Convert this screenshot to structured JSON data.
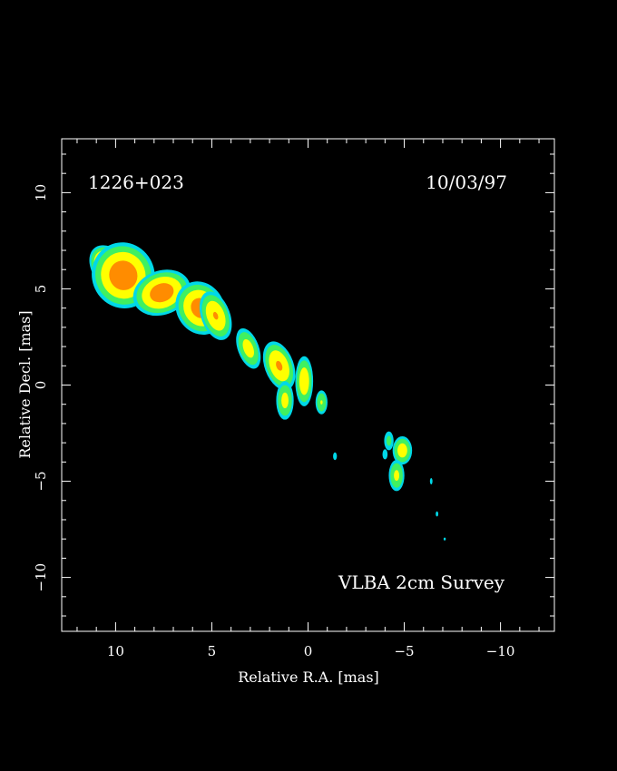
{
  "chart_data": {
    "type": "heatmap",
    "title_left": "1226+023",
    "title_right": "10/03/97",
    "annotation": "VLBA 2cm Survey",
    "xlabel": "Relative R.A. [mas]",
    "ylabel": "Relative Decl. [mas]",
    "xlim": [
      12.8,
      -12.8
    ],
    "ylim": [
      -12.8,
      12.8
    ],
    "x_ticks": [
      {
        "value": 10,
        "label": "10"
      },
      {
        "value": 5,
        "label": "5"
      },
      {
        "value": 0,
        "label": "0"
      },
      {
        "value": -5,
        "label": "−5"
      },
      {
        "value": -10,
        "label": "−10"
      }
    ],
    "y_ticks": [
      {
        "value": 10,
        "label": "10"
      },
      {
        "value": 5,
        "label": "5"
      },
      {
        "value": 0,
        "label": "0"
      },
      {
        "value": -5,
        "label": "−5"
      },
      {
        "value": -10,
        "label": "−10"
      }
    ],
    "colors": {
      "background": "#000000",
      "frame": "#ffffff",
      "levels": [
        "#00d8e8",
        "#40f060",
        "#ffff00",
        "#ff8c00",
        "#ffffff"
      ]
    },
    "components": [
      {
        "name": "core",
        "x": 10.1,
        "y": 5.9,
        "rx": 1.0,
        "ry": 1.6,
        "rot": -40,
        "peak": 1.0
      },
      {
        "name": "core-halo",
        "x": 9.6,
        "y": 5.7,
        "rx": 1.7,
        "ry": 1.8,
        "rot": -20,
        "peak": 0.72
      },
      {
        "name": "knot-a",
        "x": 7.6,
        "y": 4.8,
        "rx": 1.6,
        "ry": 1.2,
        "rot": -20,
        "peak": 0.7
      },
      {
        "name": "knot-b",
        "x": 5.6,
        "y": 4.0,
        "rx": 1.3,
        "ry": 1.5,
        "rot": -30,
        "peak": 0.68
      },
      {
        "name": "knot-c",
        "x": 4.8,
        "y": 3.6,
        "rx": 0.8,
        "ry": 1.4,
        "rot": -20,
        "peak": 0.6
      },
      {
        "name": "knot-d",
        "x": 3.1,
        "y": 1.9,
        "rx": 0.6,
        "ry": 1.2,
        "rot": -20,
        "peak": 0.5
      },
      {
        "name": "knot-e",
        "x": 1.5,
        "y": 1.0,
        "rx": 0.8,
        "ry": 1.4,
        "rot": -20,
        "peak": 0.62
      },
      {
        "name": "knot-f",
        "x": 1.2,
        "y": -0.8,
        "rx": 0.5,
        "ry": 1.1,
        "rot": 0,
        "peak": 0.48
      },
      {
        "name": "knot-g",
        "x": 0.2,
        "y": 0.2,
        "rx": 0.5,
        "ry": 1.4,
        "rot": 0,
        "peak": 0.55
      },
      {
        "name": "knot-h",
        "x": -0.7,
        "y": -0.9,
        "rx": 0.35,
        "ry": 0.7,
        "rot": 0,
        "peak": 0.42
      },
      {
        "name": "knot-i",
        "x": -1.4,
        "y": -3.7,
        "rx": 0.15,
        "ry": 0.3,
        "rot": 0,
        "peak": 0.2
      },
      {
        "name": "knot-j",
        "x": -4.9,
        "y": -3.4,
        "rx": 0.55,
        "ry": 0.8,
        "rot": 0,
        "peak": 0.52
      },
      {
        "name": "knot-k",
        "x": -4.6,
        "y": -4.7,
        "rx": 0.45,
        "ry": 0.9,
        "rot": 0,
        "peak": 0.46
      },
      {
        "name": "knot-l",
        "x": -4.2,
        "y": -2.9,
        "rx": 0.3,
        "ry": 0.6,
        "rot": 0,
        "peak": 0.3
      },
      {
        "name": "knot-m",
        "x": -4.0,
        "y": -3.6,
        "rx": 0.2,
        "ry": 0.4,
        "rot": 0,
        "peak": 0.2
      },
      {
        "name": "knot-n",
        "x": -6.4,
        "y": -5.0,
        "rx": 0.1,
        "ry": 0.25,
        "rot": 0,
        "peak": 0.2
      },
      {
        "name": "knot-o",
        "x": -6.7,
        "y": -6.7,
        "rx": 0.1,
        "ry": 0.2,
        "rot": 0,
        "peak": 0.2
      },
      {
        "name": "knot-p",
        "x": -7.1,
        "y": -8.0,
        "rx": 0.05,
        "ry": 0.08,
        "rot": 0,
        "peak": 0.15
      }
    ]
  }
}
